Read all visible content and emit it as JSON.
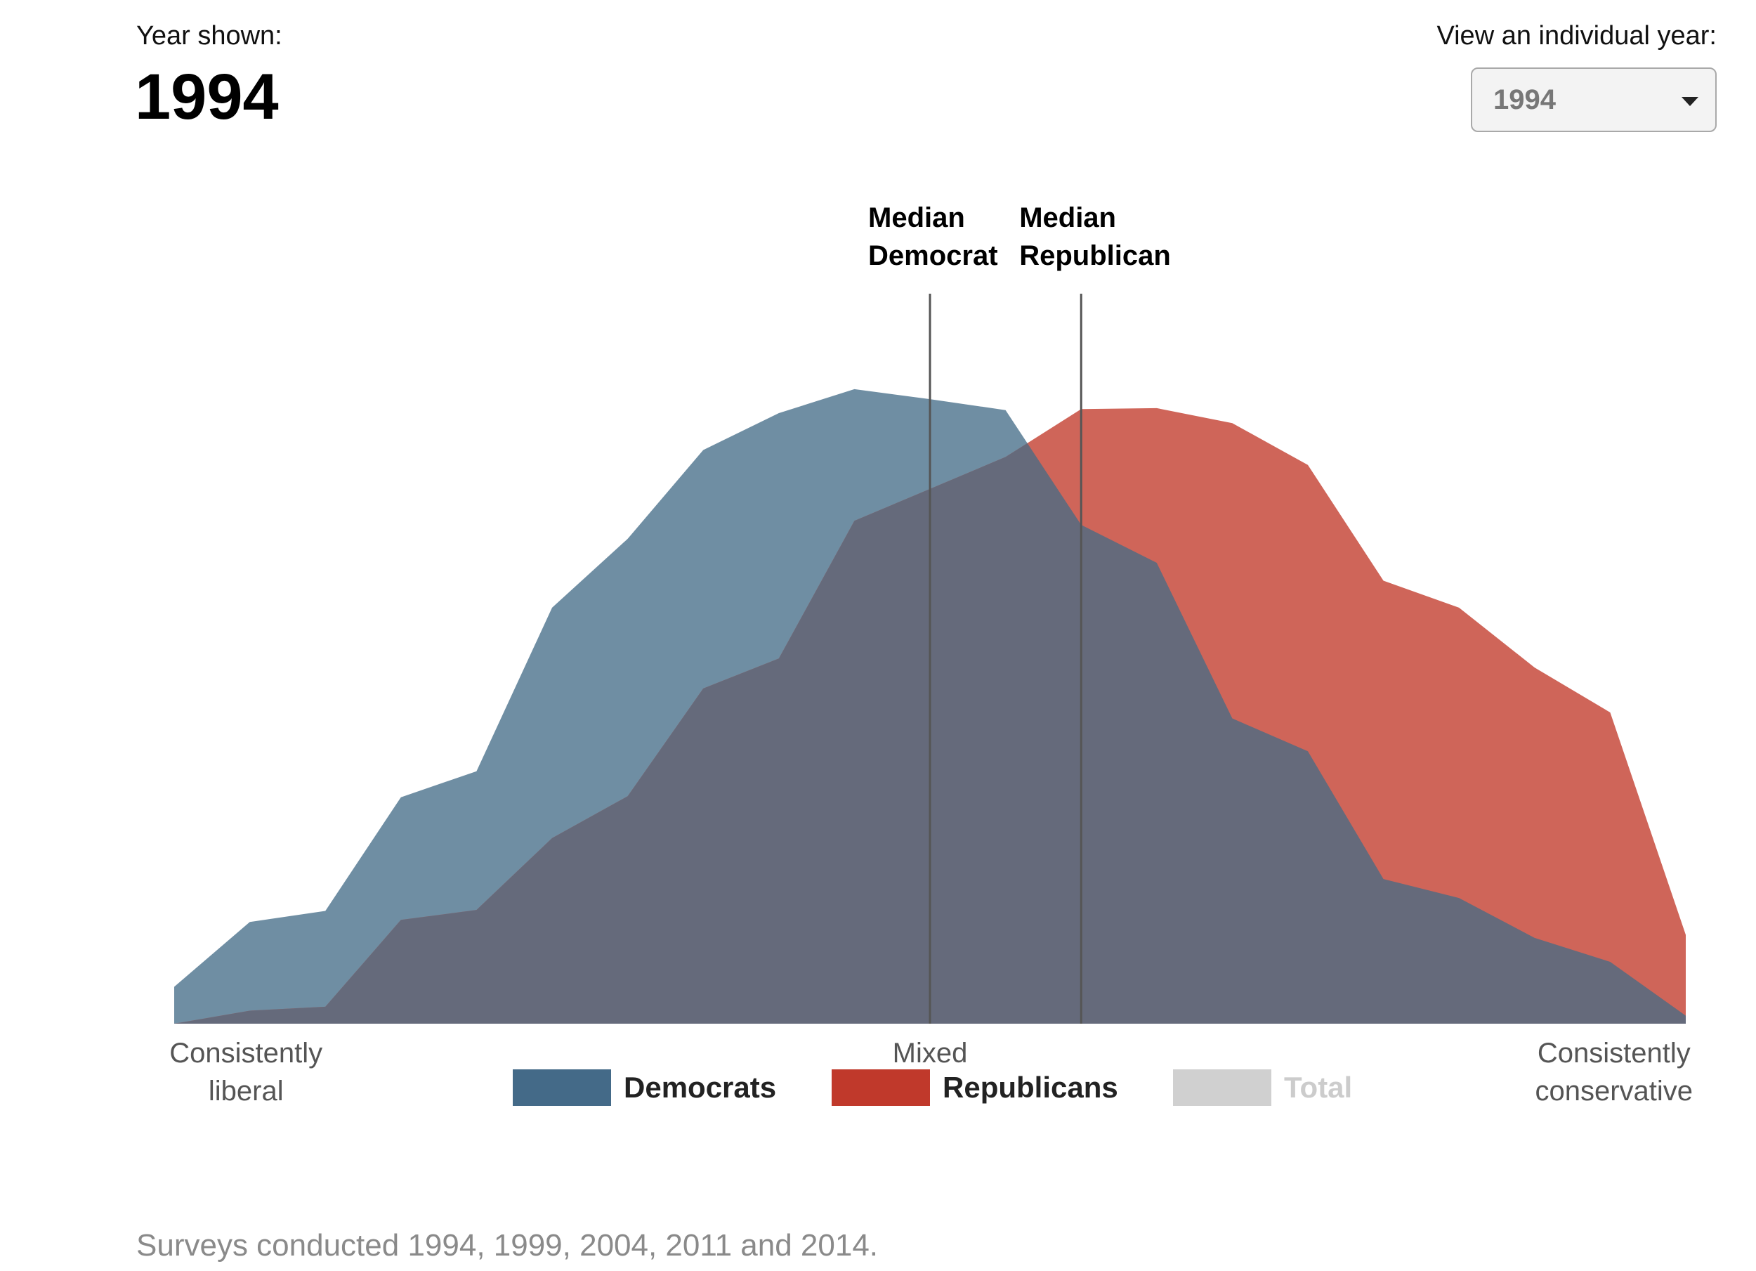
{
  "header": {
    "year_shown_label": "Year shown:",
    "year_shown_value": "1994",
    "select_label": "View an individual year:",
    "select_value": "1994"
  },
  "footnote": "Surveys conducted 1994, 1999, 2004, 2011 and 2014.",
  "colors": {
    "democrats_area": "#6f8ea3",
    "republicans_area": "#cf6559",
    "overlap_area": "#656a7b",
    "democrats_swatch": "#446a88",
    "republicans_swatch": "#c0392b",
    "total_swatch": "#d0d0d0",
    "median_line": "#555555"
  },
  "legend": [
    {
      "label": "Democrats",
      "color": "#446a88",
      "text_color": "#222222"
    },
    {
      "label": "Republicans",
      "color": "#c0392b",
      "text_color": "#222222"
    },
    {
      "label": "Total",
      "color": "#d0d0d0",
      "text_color": "#cccccc"
    }
  ],
  "chart_data": {
    "type": "area",
    "x": [
      -10,
      -9,
      -8,
      -7,
      -6,
      -5,
      -4,
      -3,
      -2,
      -1,
      0,
      1,
      2,
      3,
      4,
      5,
      6,
      7,
      8,
      9,
      10
    ],
    "xlim": [
      -10,
      10
    ],
    "ylim": [
      0,
      8.5
    ],
    "x_axis_labels": [
      {
        "x": -9.05,
        "lines": [
          "Consistently",
          "liberal"
        ]
      },
      {
        "x": 0,
        "lines": [
          "Mixed"
        ]
      },
      {
        "x": 9.05,
        "lines": [
          "Consistently",
          "conservative"
        ]
      }
    ],
    "series": [
      {
        "name": "Democrats",
        "values": [
          0.37,
          1.02,
          1.13,
          2.27,
          2.53,
          4.17,
          4.86,
          5.75,
          6.12,
          6.36,
          6.26,
          6.15,
          5.0,
          4.62,
          3.06,
          2.73,
          1.45,
          1.26,
          0.86,
          0.62,
          0.08
        ]
      },
      {
        "name": "Republicans",
        "values": [
          0.0,
          0.13,
          0.17,
          1.04,
          1.14,
          1.86,
          2.28,
          3.36,
          3.66,
          5.04,
          5.36,
          5.68,
          6.16,
          6.17,
          6.02,
          5.6,
          4.44,
          4.17,
          3.57,
          3.12,
          0.89
        ]
      }
    ],
    "medians": [
      {
        "x": 0,
        "label_lines": [
          "Median",
          "Democrat"
        ]
      },
      {
        "x": 2,
        "label_lines": [
          "Median",
          "Republican"
        ]
      }
    ],
    "grid": false,
    "legend_position": "bottom"
  }
}
